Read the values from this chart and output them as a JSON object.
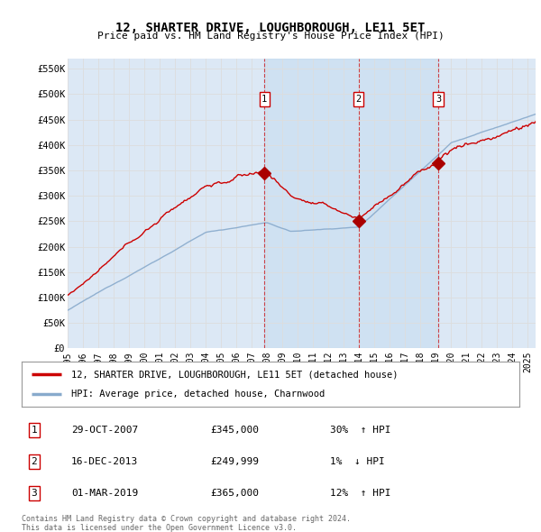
{
  "title": "12, SHARTER DRIVE, LOUGHBOROUGH, LE11 5ET",
  "subtitle": "Price paid vs. HM Land Registry's House Price Index (HPI)",
  "background_color": "#ffffff",
  "plot_background": "#dce8f5",
  "grid_color": "#cccccc",
  "shade_color": "#c8dff0",
  "yticks": [
    0,
    50000,
    100000,
    150000,
    200000,
    250000,
    300000,
    350000,
    400000,
    450000,
    500000,
    550000
  ],
  "ytick_labels": [
    "£0",
    "£50K",
    "£100K",
    "£150K",
    "£200K",
    "£250K",
    "£300K",
    "£350K",
    "£400K",
    "£450K",
    "£500K",
    "£550K"
  ],
  "xmin": 1995.0,
  "xmax": 2025.5,
  "ymin": 0,
  "ymax": 570000,
  "sales": [
    {
      "num": 1,
      "year": 2007.83,
      "price": 345000,
      "date": "29-OCT-2007",
      "pct": "30%",
      "dir": "↑"
    },
    {
      "num": 2,
      "year": 2013.96,
      "price": 249999,
      "date": "16-DEC-2013",
      "pct": "1%",
      "dir": "↓"
    },
    {
      "num": 3,
      "year": 2019.16,
      "price": 365000,
      "date": "01-MAR-2019",
      "pct": "12%",
      "dir": "↑"
    }
  ],
  "legend_label_red": "12, SHARTER DRIVE, LOUGHBOROUGH, LE11 5ET (detached house)",
  "legend_label_blue": "HPI: Average price, detached house, Charnwood",
  "footer": "Contains HM Land Registry data © Crown copyright and database right 2024.\nThis data is licensed under the Open Government Licence v3.0.",
  "red_color": "#cc0000",
  "blue_color": "#88aacc",
  "marker_color": "#aa0000"
}
